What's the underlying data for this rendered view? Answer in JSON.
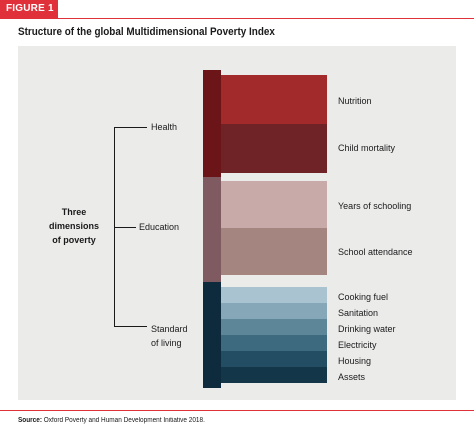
{
  "figure_label": "FIGURE 1",
  "title": "Structure of the global Multidimensional Poverty Index",
  "root_label": [
    "Three",
    "dimensions",
    "of poverty"
  ],
  "dimensions": [
    {
      "name": "Health",
      "color": "#6b1518",
      "indicators": [
        {
          "name": "Nutrition",
          "color": "#a32a2a"
        },
        {
          "name": "Child mortality",
          "color": "#6f2326"
        }
      ]
    },
    {
      "name": "Education",
      "color": "#7f5a61",
      "indicators": [
        {
          "name": "Years of schooling",
          "color": "#c8aaa8"
        },
        {
          "name": "School attendance",
          "color": "#a48580"
        }
      ]
    },
    {
      "name_lines": [
        "Standard",
        "of living"
      ],
      "color": "#0e2a3d",
      "indicators": [
        {
          "name": "Cooking fuel",
          "color": "#aac3d0"
        },
        {
          "name": "Sanitation",
          "color": "#86a7b8"
        },
        {
          "name": "Drinking water",
          "color": "#5e8699"
        },
        {
          "name": "Electricity",
          "color": "#3e6a80"
        },
        {
          "name": "Housing",
          "color": "#224d62"
        },
        {
          "name": "Assets",
          "color": "#143649"
        }
      ]
    }
  ],
  "source_label": "Source:",
  "source_text": "Oxford Poverty and Human Development Initiative 2018."
}
